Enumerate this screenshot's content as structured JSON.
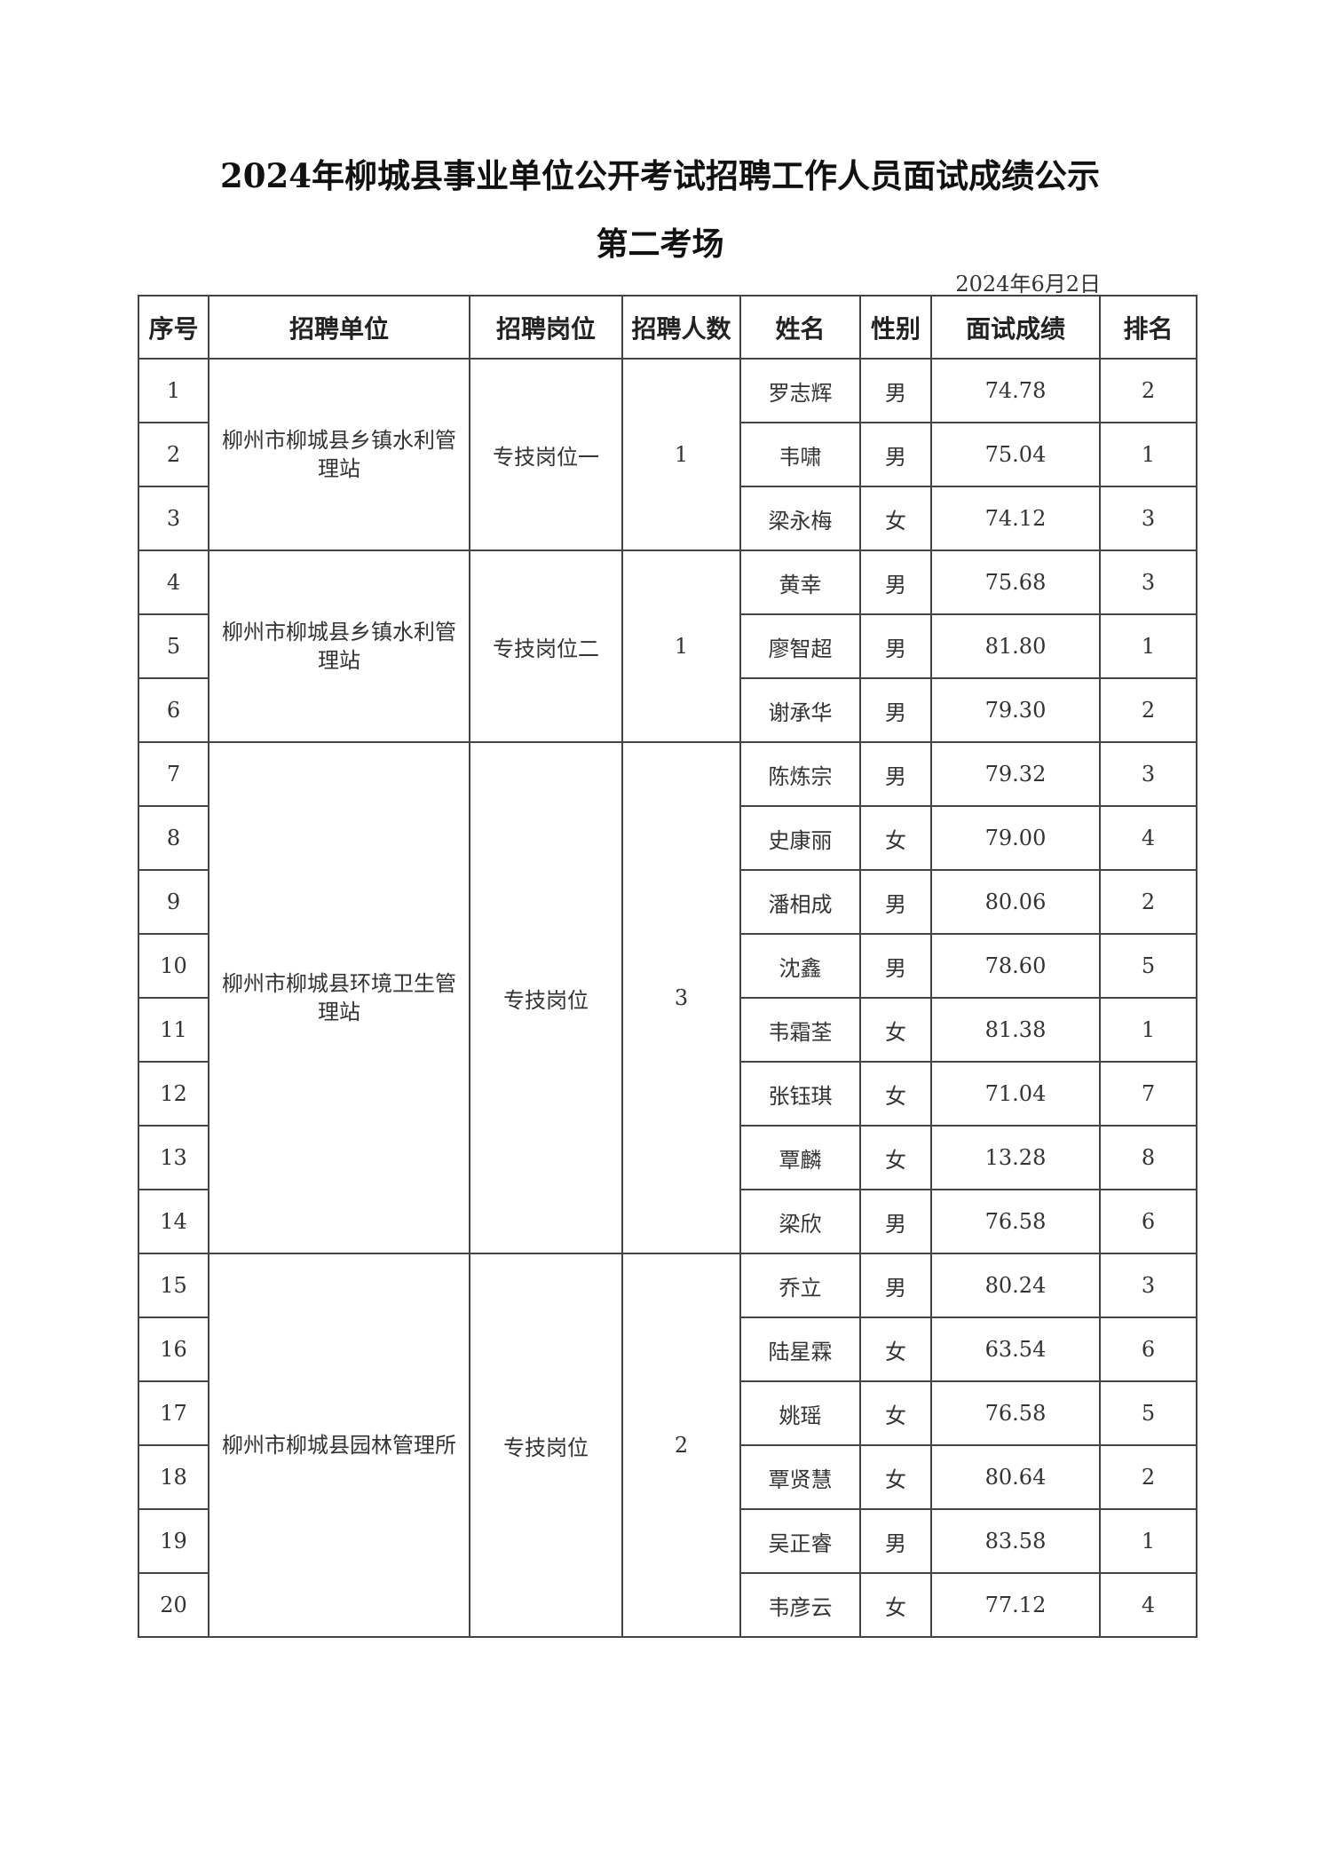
{
  "title": "2024年柳城县事业单位公开考试招聘工作人员面试成绩公示",
  "subtitle": "第二考场",
  "date": "2024年6月2日",
  "headers": [
    "序号",
    "招聘单位",
    "招聘岗位",
    "招聘人数",
    "姓名",
    "性别",
    "面试成绩",
    "排名"
  ],
  "groups": [
    {
      "unit": "柳州市柳城县乡镇水利管理站",
      "position": "专技岗位一",
      "count": "1"
    },
    {
      "unit": "柳州市柳城县乡镇水利管理站",
      "position": "专技岗位二",
      "count": "1"
    },
    {
      "unit": "柳州市柳城县环境卫生管理站",
      "position": "专技岗位",
      "count": "3"
    },
    {
      "unit": "柳州市柳城县园林管理所",
      "position": "专技岗位",
      "count": "2"
    }
  ],
  "rows": [
    {
      "no": "1",
      "name": "罗志辉",
      "gender": "男",
      "score": "74.78",
      "rank": "2"
    },
    {
      "no": "2",
      "name": "韦啸",
      "gender": "男",
      "score": "75.04",
      "rank": "1"
    },
    {
      "no": "3",
      "name": "梁永梅",
      "gender": "女",
      "score": "74.12",
      "rank": "3"
    },
    {
      "no": "4",
      "name": "黄幸",
      "gender": "男",
      "score": "75.68",
      "rank": "3"
    },
    {
      "no": "5",
      "name": "廖智超",
      "gender": "男",
      "score": "81.80",
      "rank": "1"
    },
    {
      "no": "6",
      "name": "谢承华",
      "gender": "男",
      "score": "79.30",
      "rank": "2"
    },
    {
      "no": "7",
      "name": "陈炼宗",
      "gender": "男",
      "score": "79.32",
      "rank": "3"
    },
    {
      "no": "8",
      "name": "史康丽",
      "gender": "女",
      "score": "79.00",
      "rank": "4"
    },
    {
      "no": "9",
      "name": "潘相成",
      "gender": "男",
      "score": "80.06",
      "rank": "2"
    },
    {
      "no": "10",
      "name": "沈鑫",
      "gender": "男",
      "score": "78.60",
      "rank": "5"
    },
    {
      "no": "11",
      "name": "韦霜荃",
      "gender": "女",
      "score": "81.38",
      "rank": "1"
    },
    {
      "no": "12",
      "name": "张钰琪",
      "gender": "女",
      "score": "71.04",
      "rank": "7"
    },
    {
      "no": "13",
      "name": "覃麟",
      "gender": "女",
      "score": "13.28",
      "rank": "8"
    },
    {
      "no": "14",
      "name": "梁欣",
      "gender": "男",
      "score": "76.58",
      "rank": "6"
    },
    {
      "no": "15",
      "name": "乔立",
      "gender": "男",
      "score": "80.24",
      "rank": "3"
    },
    {
      "no": "16",
      "name": "陆星霖",
      "gender": "女",
      "score": "63.54",
      "rank": "6"
    },
    {
      "no": "17",
      "name": "姚瑶",
      "gender": "女",
      "score": "76.58",
      "rank": "5"
    },
    {
      "no": "18",
      "name": "覃贤慧",
      "gender": "女",
      "score": "80.64",
      "rank": "2"
    },
    {
      "no": "19",
      "name": "吴正睿",
      "gender": "男",
      "score": "83.58",
      "rank": "1"
    },
    {
      "no": "20",
      "name": "韦彦云",
      "gender": "女",
      "score": "77.12",
      "rank": "4"
    }
  ]
}
